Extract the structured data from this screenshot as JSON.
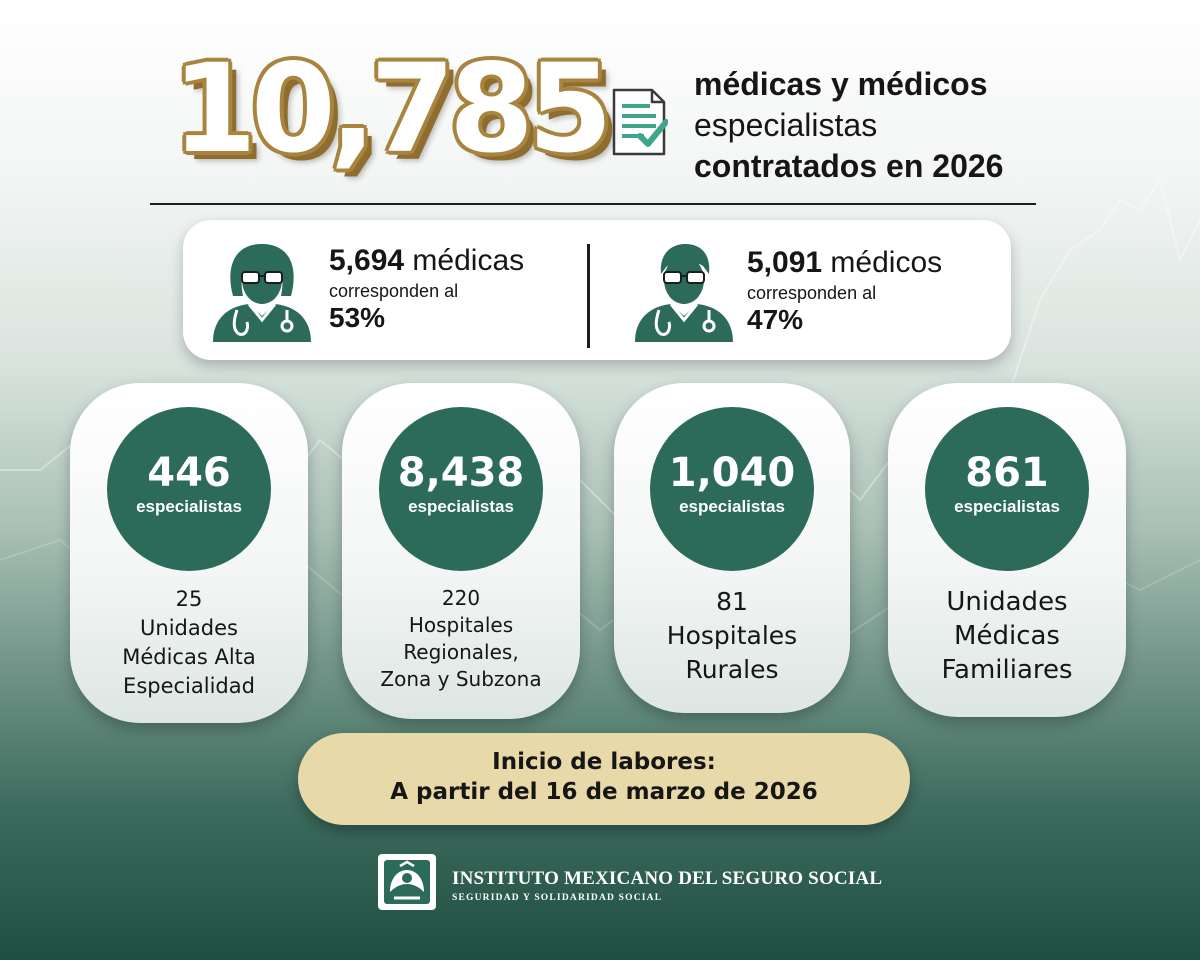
{
  "header": {
    "total": "10,785",
    "line1": "médicas y médicos",
    "line2": "especialistas",
    "line3": "contratados en 2026"
  },
  "gender": {
    "female": {
      "count": "5,694",
      "label": "médicas",
      "sub": "corresponden al",
      "pct": "53%"
    },
    "male": {
      "count": "5,091",
      "label": "médicos",
      "sub": "corresponden al",
      "pct": "47%"
    }
  },
  "units": [
    {
      "value": "446",
      "unit": "especialistas",
      "desc": [
        "25",
        "Unidades",
        "Médicas Alta",
        "Especialidad"
      ]
    },
    {
      "value": "8,438",
      "unit": "especialistas",
      "desc": [
        "220",
        "Hospitales",
        "Regionales,",
        "Zona y Subzona"
      ]
    },
    {
      "value": "1,040",
      "unit": "especialistas",
      "desc": [
        "81",
        "Hospitales",
        "Rurales"
      ]
    },
    {
      "value": "861",
      "unit": "especialistas",
      "desc": [
        "Unidades",
        "Médicas",
        "Familiares"
      ]
    }
  ],
  "start": {
    "line1": "Inicio de labores:",
    "line2": "A partir del 16 de marzo de 2026"
  },
  "footer": {
    "name": "INSTITUTO MEXICANO DEL SEGURO SOCIAL",
    "motto": "SEGURIDAD Y SOLIDARIDAD SOCIAL"
  },
  "colors": {
    "accent_green": "#2c6a5a",
    "gold": "#a8843e",
    "pill": "#e8d9a8"
  },
  "icons": [
    "document-check-icon",
    "female-doctor-icon",
    "male-doctor-icon",
    "imss-logo-icon"
  ]
}
